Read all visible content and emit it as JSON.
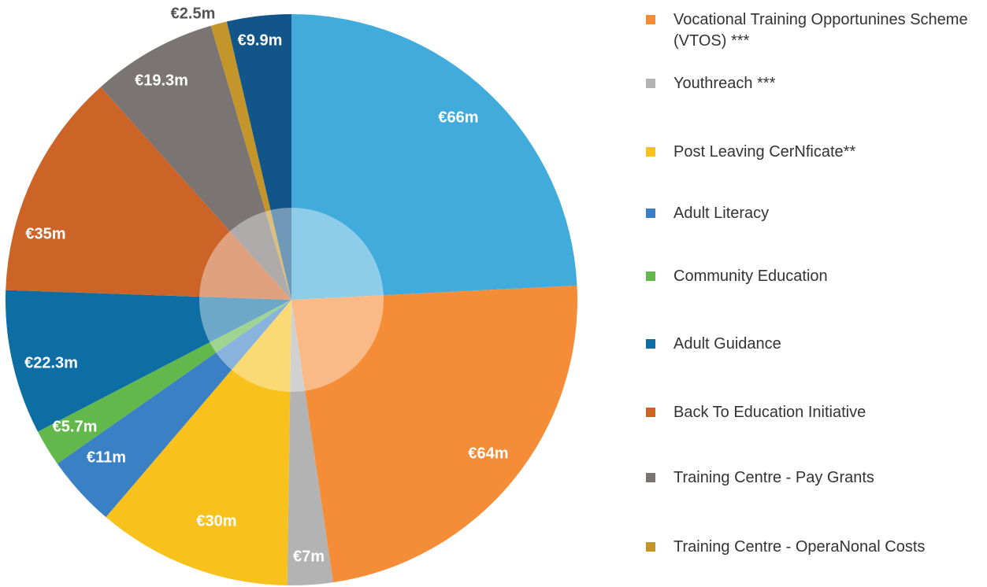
{
  "chart_data": {
    "type": "pie",
    "categories": [
      null,
      "Vocational Training Opportunines Scheme (VTOS) ***",
      "Youthreach ***",
      "Post Leaving CerNficate**",
      "Adult  Literacy",
      "Community Education",
      "Adult Guidance",
      "Back To Education Initiative",
      "Training Centre  - Pay Grants",
      "Training Centre - OperaNonal Costs",
      null
    ],
    "values": [
      66,
      64,
      7,
      30,
      11,
      5.7,
      22.3,
      35,
      19.3,
      2.5,
      9.9
    ],
    "value_labels": [
      "€66m",
      "€64m",
      "€7m",
      "€30m",
      "€11m",
      "€5.7m",
      "€22.3m",
      "€35m",
      "€19.3m",
      "€2.5m",
      "€9.9m"
    ],
    "colors": [
      "#41acdc",
      "#f58d38",
      "#b3b3b3",
      "#f8c11b",
      "#3a80c5",
      "#62b84b",
      "#0d6ea3",
      "#cc6428",
      "#7a7472",
      "#c4952a",
      "#125588"
    ]
  }
}
